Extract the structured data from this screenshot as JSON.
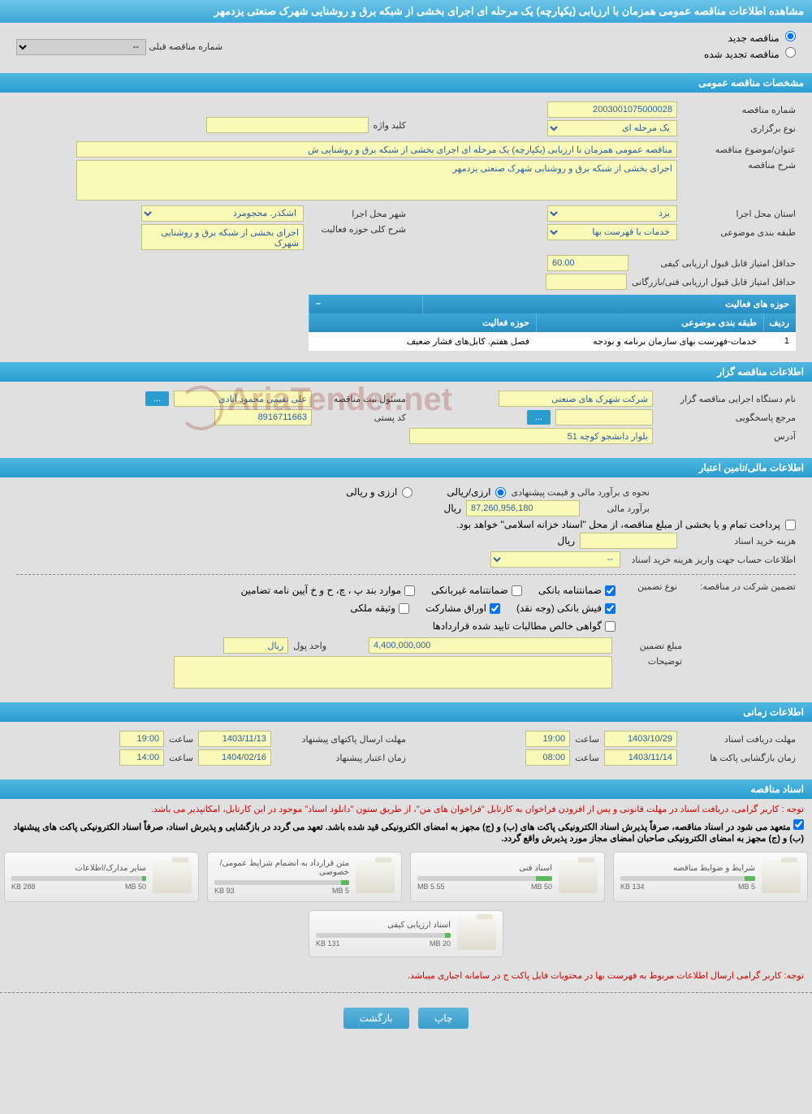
{
  "pageTitle": "مشاهده اطلاعات مناقصه عمومی همزمان با ارزیابی (یکپارچه) یک مرحله ای اجرای بخشی از شبکه برق و روشنایی شهرک صنعتی یزدمهر",
  "tenderType": {
    "newLabel": "مناقصه جدید",
    "renewedLabel": "مناقصه تجدید شده",
    "prevNumberLabel": "شماره مناقصه قبلی",
    "prevNumberValue": "--"
  },
  "sections": {
    "general": "مشخصات مناقصه عمومی",
    "holder": "اطلاعات مناقصه گزار",
    "financial": "اطلاعات مالی/تامین اعتبار",
    "timing": "اطلاعات زمانی",
    "docs": "اسناد مناقصه"
  },
  "general": {
    "tenderNoLabel": "شماره مناقصه",
    "tenderNo": "2003001075000028",
    "holdTypeLabel": "نوع برگزاری",
    "holdType": "یک مرحله ای",
    "keywordLabel": "کلید واژه",
    "keyword": "",
    "subjectLabel": "عنوان/موضوع مناقصه",
    "subject": "مناقصه عمومی همزمان با ارزیابی (یکپارچه) یک مرحله ای اجرای بخشی از شبکه برق و روشنایی ش",
    "descLabel": "شرح مناقصه",
    "desc": "اجرای بخشی از شبکه برق و روشنایی شهرک صنعتی یزدمهر",
    "provinceLabel": "استان محل اجرا",
    "province": "یزد",
    "cityLabel": "شهر محل اجرا",
    "city": "اشکذر. محجومرد",
    "categoryLabel": "طبقه بندی موضوعی",
    "category": "خدمات با فهرست بها",
    "activityScopeLabel": "شرح کلی حوزه فعالیت",
    "activityScope": "اجرای بخشی از شبکه برق و روشنایی شهرک",
    "minQualScoreLabel": "حداقل امتیاز قابل قبول ارزیابی کیفی",
    "minQualScore": "60.00",
    "minTechScoreLabel": "حداقل امتیاز قابل قبول ارزیابی فنی/بازرگانی",
    "minTechScore": ""
  },
  "activityTable": {
    "title": "حوزه های فعالیت",
    "col1": "ردیف",
    "col2": "طبقه بندی موضوعی",
    "col3": "حوزه فعالیت",
    "row": {
      "n": "1",
      "cat": "خدمات-فهرست بهای سازمان برنامه و بودجه",
      "act": "فصل هفتم. کابل‌های فشار ضعیف"
    }
  },
  "holder": {
    "orgLabel": "نام دستگاه اجرایی مناقصه گزار",
    "org": "شرکت شهرک های صنعتی",
    "responsibleLabel": "مسئول ثبت مناقصه",
    "responsible": "علی تقیمی محمود آبادی",
    "more": "...",
    "refLabel": "مرجع پاسخگویی",
    "ref": "",
    "postalLabel": "کد پستی",
    "postal": "8916711663",
    "addressLabel": "آدرس",
    "address": "بلوار دانشجو کوچه 51"
  },
  "financial": {
    "estimateMethodLabel": "نحوه ی برآورد مالی و قیمت پیشنهادی",
    "opt1": "ارزی/ریالی",
    "opt2": "ارزی و ریالی",
    "estimateLabel": "برآورد مالی",
    "estimate": "87,260,956,180",
    "currency": "ریال",
    "treasuryNote": "پرداخت تمام و یا بخشی از مبلغ مناقصه، از محل \"اسناد خزانه اسلامی\" خواهد بود.",
    "docCostLabel": "هزینه خرید اسناد",
    "docCost": "",
    "accountInfoLabel": "اطلاعات حساب جهت واریز هزینه خرید اسناد",
    "accountInfo": "--",
    "guaranteeLabel": "تضمین شرکت در مناقصه:",
    "guaranteeTypeLabel": "نوع تضمین",
    "chk1": "ضمانتنامه بانکی",
    "chk2": "ضمانتنامه غیربانکی",
    "chk3": "موارد بند پ ، چ، ح و خ آیین نامه تضامین",
    "chk4": "فیش بانکی (وجه نقد)",
    "chk5": "اوراق مشارکت",
    "chk6": "وثیقه ملکی",
    "chk7": "گواهی خالص مطالبات تایید شده قراردادها",
    "guaranteeAmountLabel": "مبلغ تضمین",
    "guaranteeAmount": "4,400,000,000",
    "unitLabel": "واحد پول",
    "unit": "ریال",
    "notesLabel": "توضیحات",
    "notes": ""
  },
  "timing": {
    "receiveDeadlineLabel": "مهلت دریافت اسناد",
    "receiveDeadline": "1403/10/29",
    "timeLabel": "ساعت",
    "receiveTime": "19:00",
    "sendDeadlineLabel": "مهلت ارسال پاکتهای پیشنهاد",
    "sendDeadline": "1403/11/13",
    "sendTime": "19:00",
    "openDateLabel": "زمان بازگشایی پاکت ها",
    "openDate": "1403/11/14",
    "openTime": "08:00",
    "validityLabel": "زمان اعتبار پیشنهاد",
    "validityDate": "1404/02/16",
    "validityTime": "14:00"
  },
  "docs": {
    "warn1": "توجه : کاربر گرامی، دریافت اسناد در مهلت قانونی و پس از افزودن فراخوان به کارتابل \"فراخوان های من\"، از طریق ستون \"دانلود اسناد\" موجود در این کارتابل، امکانپذیر می باشد.",
    "warn2": "متعهد می شود در اسناد مناقصه، صرفاً پذیرش اسناد الکترونیکی پاکت های (ب) و (ج) مجهز به امضای الکترونیکی قید شده باشد. تعهد می گردد در بازگشایی و پذیرش اسناد، صرفاً اسناد الکترونیکی پاکت های پیشنهاد (ب) و (ج) مجهز به امضای الکترونیکی صاحبان امضای مجاز مورد پذیرش واقع گردد.",
    "files": [
      {
        "name": "شرایط و ضوابط مناقصه",
        "size": "134 KB",
        "limit": "5 MB",
        "fill": 8
      },
      {
        "name": "اسناد فنی",
        "size": "5.55 MB",
        "limit": "50 MB",
        "fill": 12
      },
      {
        "name": "متن قرارداد به انضمام شرایط عمومی/خصوصی",
        "size": "93 KB",
        "limit": "5 MB",
        "fill": 6
      },
      {
        "name": "سایر مدارک/اطلاعات",
        "size": "288 KB",
        "limit": "50 MB",
        "fill": 3
      },
      {
        "name": "اسناد ارزیابی کیفی",
        "size": "131 KB",
        "limit": "20 MB",
        "fill": 4
      }
    ],
    "warn3": "توجه: کاربر گرامی ارسال اطلاعات مربوط به فهرست بها در محتویات فایل پاکت ج در سامانه اجباری میباشد."
  },
  "buttons": {
    "print": "چاپ",
    "back": "بازگشت"
  },
  "colors": {
    "headerGrad": "#3ba7d8",
    "yellow": "#fafab8"
  }
}
